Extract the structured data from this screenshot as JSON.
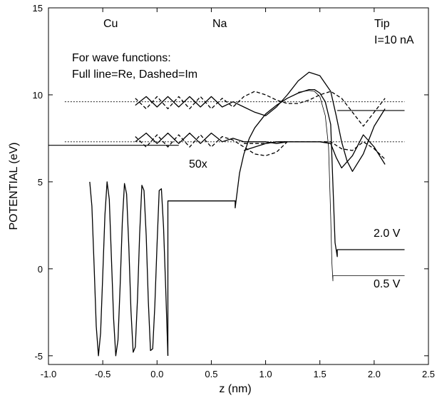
{
  "chart_data": {
    "type": "line",
    "title": "",
    "xlabel": "z (nm)",
    "ylabel": "POTENTIAL (eV)",
    "xlim": [
      -1.0,
      2.5
    ],
    "ylim": [
      -5.5,
      15
    ],
    "x_ticks": [
      -1.0,
      -0.5,
      0.0,
      0.5,
      1.0,
      1.5,
      2.0,
      2.5
    ],
    "x_tick_labels": [
      "-1.0",
      "-0.5",
      "0.0",
      "0.5",
      "1.0",
      "1.5",
      "2.0",
      "2.5"
    ],
    "y_ticks": [
      -5,
      0,
      5,
      10,
      15
    ],
    "y_tick_labels": [
      "-5",
      "0",
      "5",
      "10",
      "15"
    ],
    "grid": false,
    "legend": "none",
    "annotations": {
      "cu": "Cu",
      "na": "Na",
      "tip": "Tip",
      "current": "I=10 nA",
      "wave_title": "For wave functions:",
      "wave_legend": "Full line=Re, Dashed=Im",
      "scale": "50x",
      "bias_high": "2.0 V",
      "bias_low": "0.5 V"
    },
    "fermi_levels": {
      "upper": 9.6,
      "lower": 7.3
    },
    "series": [
      {
        "style": "solid",
        "x": [
          0.1,
          0.1,
          0.72,
          0.72,
          0.76,
          0.8,
          0.85,
          0.9,
          1.0,
          1.1,
          1.2,
          1.3,
          1.4,
          1.45,
          1.5,
          1.55,
          1.6,
          1.64,
          1.66,
          1.66,
          2.28
        ],
        "y": [
          -5.0,
          3.9,
          3.9,
          3.5,
          5.5,
          6.6,
          7.5,
          8.1,
          8.9,
          9.4,
          9.8,
          10.1,
          10.3,
          10.3,
          10.1,
          9.6,
          8.3,
          1.5,
          0.7,
          1.1,
          1.1
        ]
      },
      {
        "style": "thin",
        "x": [
          1.3,
          1.4,
          1.45,
          1.5,
          1.55,
          1.58,
          1.6,
          1.61,
          1.62,
          1.62,
          2.28
        ],
        "y": [
          10.15,
          10.25,
          10.2,
          9.9,
          8.8,
          7.0,
          3.0,
          0.4,
          -0.7,
          -0.4,
          -0.4
        ]
      },
      {
        "style": "solid",
        "x": [
          -0.62,
          -0.6,
          -0.58,
          -0.56,
          -0.54,
          -0.52,
          -0.5,
          -0.48,
          -0.46,
          -0.44,
          -0.42,
          -0.4,
          -0.38,
          -0.36,
          -0.34,
          -0.32,
          -0.3,
          -0.28,
          -0.26,
          -0.24,
          -0.22,
          -0.2,
          -0.18,
          -0.16,
          -0.14,
          -0.12,
          -0.1,
          -0.08,
          -0.06,
          -0.04,
          -0.02,
          0.0,
          0.02,
          0.04,
          0.06,
          0.08,
          0.1
        ],
        "y": [
          5.0,
          3.6,
          0.2,
          -3.3,
          -5.0,
          -3.7,
          -0.4,
          3.1,
          5.0,
          4.0,
          0.6,
          -2.9,
          -5.0,
          -4.1,
          -1.0,
          2.7,
          4.9,
          4.3,
          1.3,
          -2.4,
          -4.8,
          -4.5,
          -1.7,
          2.0,
          4.8,
          4.5,
          1.9,
          -1.9,
          -4.7,
          -4.6,
          -2.1,
          1.4,
          4.5,
          4.6,
          2.4,
          -1.2,
          -5.0
        ]
      },
      {
        "style": "solid",
        "x": [
          -0.2,
          -0.1,
          0.0,
          0.1,
          0.2,
          0.3,
          0.4,
          0.5,
          0.6,
          0.7,
          0.8,
          0.9,
          1.0,
          1.1,
          1.2,
          1.3,
          1.4,
          1.5,
          1.6,
          1.65,
          1.7,
          1.75,
          1.8,
          1.9,
          2.0,
          2.1
        ],
        "y": [
          9.4,
          9.9,
          9.3,
          9.9,
          9.3,
          9.9,
          9.3,
          9.9,
          9.3,
          9.6,
          9.3,
          9.0,
          8.8,
          9.3,
          10.0,
          10.8,
          11.3,
          11.1,
          10.2,
          8.8,
          7.3,
          6.2,
          5.6,
          6.6,
          8.2,
          9.2
        ]
      },
      {
        "style": "dashed",
        "x": [
          -0.2,
          -0.1,
          0.0,
          0.1,
          0.2,
          0.3,
          0.4,
          0.5,
          0.6,
          0.7,
          0.8,
          0.9,
          1.0,
          1.1,
          1.2,
          1.3,
          1.4,
          1.5,
          1.6,
          1.7,
          1.8,
          1.9,
          2.0,
          2.1
        ],
        "y": [
          9.8,
          9.2,
          9.9,
          9.2,
          9.9,
          9.2,
          9.9,
          9.2,
          9.8,
          9.3,
          9.9,
          10.2,
          10.0,
          9.7,
          9.5,
          9.5,
          9.7,
          10.0,
          10.2,
          9.8,
          9.0,
          8.2,
          9.0,
          9.8
        ]
      },
      {
        "style": "solid",
        "x": [
          -0.2,
          -0.1,
          0.0,
          0.1,
          0.2,
          0.3,
          0.4,
          0.5,
          0.6,
          0.7,
          0.8,
          0.9,
          1.0,
          1.1,
          1.2
        ],
        "y": [
          7.3,
          7.8,
          7.2,
          7.8,
          7.2,
          7.8,
          7.2,
          7.8,
          7.3,
          7.5,
          7.3,
          7.3,
          7.3,
          7.2,
          7.3
        ]
      },
      {
        "style": "dashed",
        "x": [
          -0.2,
          -0.1,
          0.0,
          0.1,
          0.2,
          0.3,
          0.4,
          0.5,
          0.6,
          0.7,
          0.8,
          0.9,
          1.0,
          1.1,
          1.2
        ],
        "y": [
          7.6,
          7.0,
          7.7,
          7.0,
          7.7,
          7.0,
          7.7,
          7.0,
          7.6,
          7.4,
          7.0,
          6.6,
          6.5,
          6.7,
          7.3
        ]
      },
      {
        "style": "solid",
        "x": [
          0.8,
          0.9,
          1.0,
          1.1,
          1.2,
          1.3,
          1.4,
          1.5,
          1.6,
          1.65,
          1.7,
          1.8,
          1.9,
          2.0,
          2.1
        ],
        "y": [
          6.8,
          7.0,
          7.2,
          7.3,
          7.3,
          7.3,
          7.3,
          7.3,
          7.2,
          6.4,
          5.8,
          6.5,
          7.7,
          7.0,
          6.0
        ]
      },
      {
        "style": "dashed",
        "x": [
          0.8,
          0.9,
          1.0,
          1.1,
          1.2,
          1.3,
          1.4,
          1.5,
          1.6,
          1.7,
          1.8,
          1.9,
          2.0,
          2.1
        ],
        "y": [
          7.2,
          7.2,
          7.2,
          7.3,
          7.3,
          7.3,
          7.3,
          7.3,
          7.3,
          6.9,
          6.8,
          7.3,
          6.9,
          6.3
        ]
      }
    ]
  }
}
